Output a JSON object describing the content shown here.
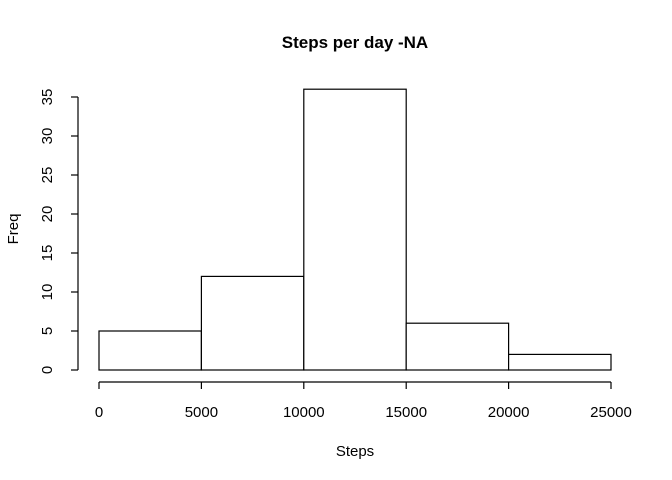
{
  "chart_data": {
    "type": "bar",
    "title": "Steps per day -NA",
    "xlabel": "Steps",
    "ylabel": "Freq",
    "bins": [
      {
        "from": 0,
        "to": 5000,
        "count": 5
      },
      {
        "from": 5000,
        "to": 10000,
        "count": 12
      },
      {
        "from": 10000,
        "to": 15000,
        "count": 36
      },
      {
        "from": 15000,
        "to": 20000,
        "count": 6
      },
      {
        "from": 20000,
        "to": 25000,
        "count": 2
      }
    ],
    "xlim": [
      0,
      25000
    ],
    "ylim": [
      0,
      35
    ],
    "xticks": [
      0,
      5000,
      10000,
      15000,
      20000,
      25000
    ],
    "yticks": [
      0,
      5,
      10,
      15,
      20,
      25,
      30,
      35
    ],
    "grid": false,
    "colors": {
      "bar_fill": "#ffffff",
      "bar_stroke": "#000000"
    }
  }
}
